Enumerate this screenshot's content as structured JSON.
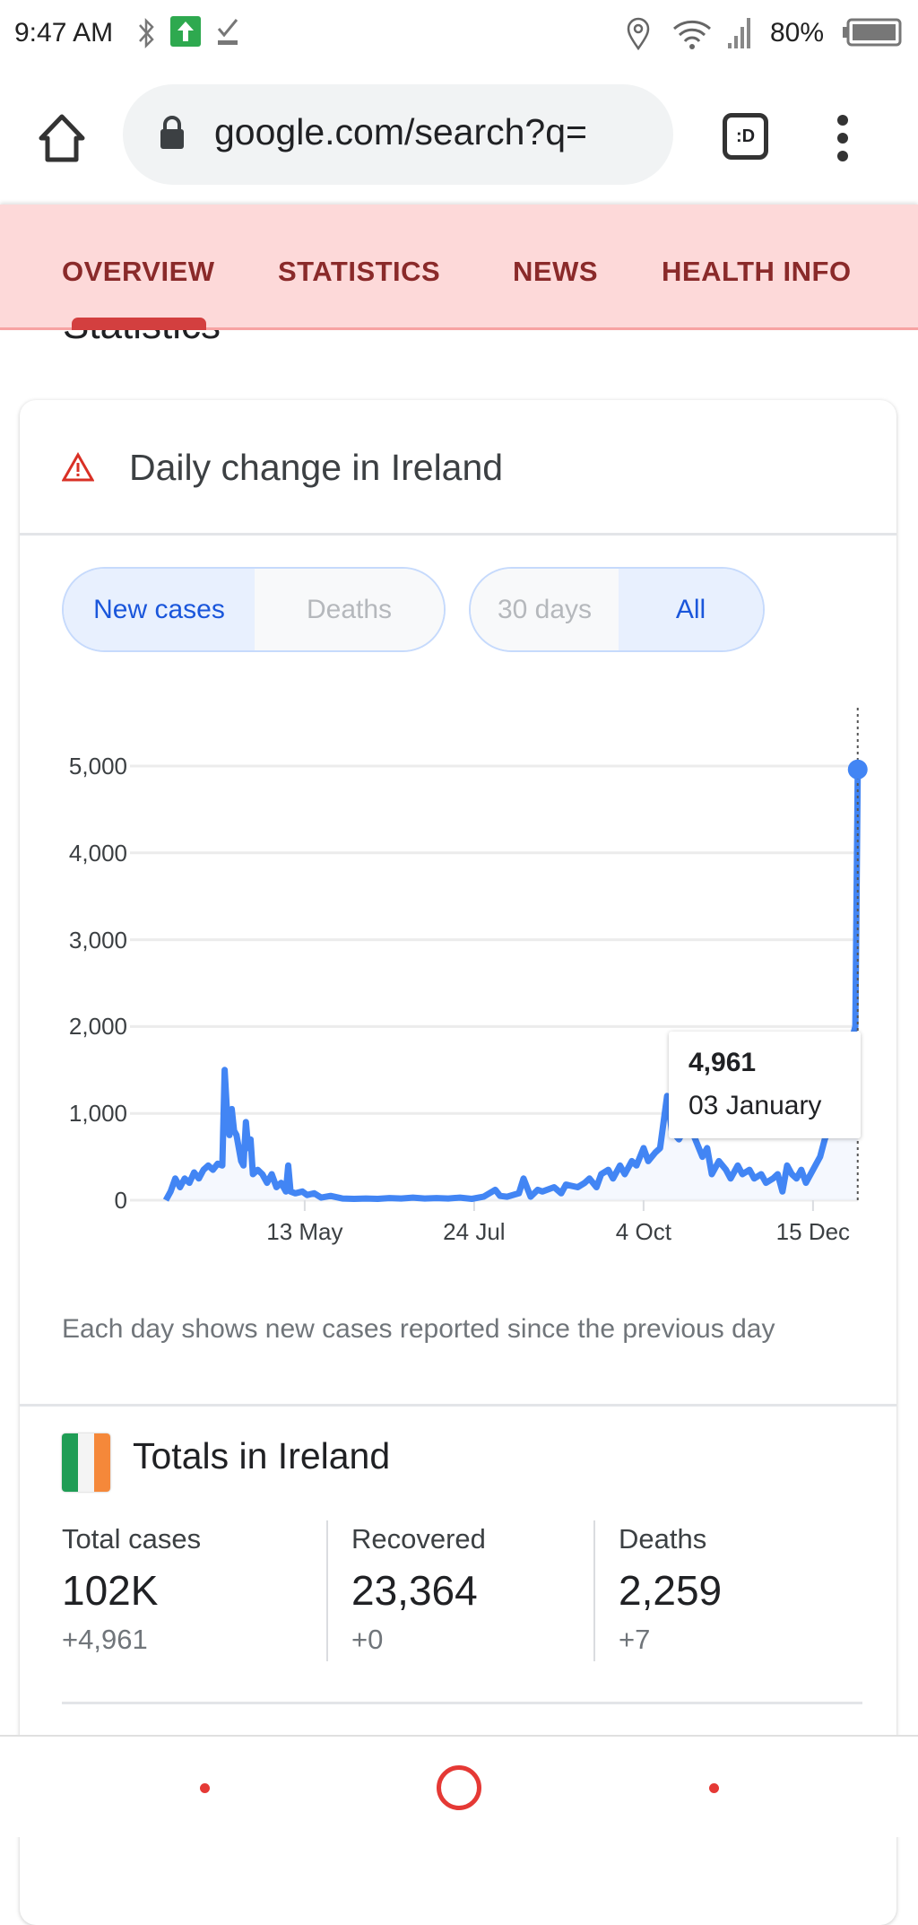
{
  "status_bar": {
    "time": "9:47 AM",
    "battery": "80%"
  },
  "browser": {
    "url": "google.com/search?q=",
    "tab_switcher_label": ":D"
  },
  "tabs": [
    {
      "label": "OVERVIEW",
      "active": true
    },
    {
      "label": "STATISTICS",
      "active": false
    },
    {
      "label": "NEWS",
      "active": false
    },
    {
      "label": "HEALTH INFO",
      "active": false
    }
  ],
  "section_title": "Statistics",
  "daily_card": {
    "title": "Daily change in Ireland",
    "metric_toggle": [
      {
        "label": "New cases",
        "selected": true
      },
      {
        "label": "Deaths",
        "selected": false
      }
    ],
    "range_toggle": [
      {
        "label": "30 days",
        "selected": false
      },
      {
        "label": "All",
        "selected": true
      }
    ],
    "tooltip": {
      "value": "4,961",
      "date": "03 January"
    },
    "caption": "Each day shows new cases reported since the previous day"
  },
  "chart_data": {
    "type": "line",
    "title": "Daily change in Ireland",
    "xlabel": "",
    "ylabel": "New cases",
    "x_unit": "days since start of series (day 59 = 13 May, day 294 = 03 January)",
    "ylim": [
      0,
      5000
    ],
    "yticks": [
      0,
      1000,
      2000,
      3000,
      4000,
      5000
    ],
    "ytick_labels": [
      "0",
      "1,000",
      "2,000",
      "3,000",
      "4,000",
      "5,000"
    ],
    "xticks": [
      59,
      131,
      203,
      275
    ],
    "xtick_labels": [
      "13 May",
      "24 Jul",
      "4 Oct",
      "15 Dec"
    ],
    "grid": true,
    "highlight": {
      "x": 294,
      "y": 4961
    },
    "x": [
      0,
      2,
      4,
      6,
      8,
      10,
      12,
      14,
      16,
      18,
      20,
      22,
      24,
      25,
      26,
      27,
      28,
      29,
      30,
      32,
      33,
      34,
      35,
      36,
      37,
      39,
      41,
      43,
      45,
      47,
      49,
      51,
      52,
      53,
      55,
      58,
      60,
      63,
      66,
      70,
      75,
      80,
      85,
      90,
      95,
      100,
      105,
      110,
      115,
      120,
      125,
      130,
      135,
      140,
      142,
      145,
      150,
      152,
      155,
      158,
      160,
      165,
      168,
      170,
      175,
      178,
      180,
      183,
      185,
      188,
      190,
      193,
      195,
      198,
      200,
      203,
      205,
      208,
      210,
      212,
      213,
      215,
      218,
      222,
      225,
      228,
      230,
      232,
      235,
      238,
      240,
      243,
      245,
      248,
      250,
      253,
      255,
      258,
      260,
      262,
      264,
      266,
      268,
      270,
      272,
      275,
      278,
      280,
      283,
      286,
      288,
      290,
      292,
      293,
      294
    ],
    "y": [
      0,
      100,
      250,
      150,
      250,
      200,
      320,
      250,
      350,
      400,
      350,
      420,
      400,
      1500,
      1000,
      750,
      1050,
      800,
      750,
      450,
      400,
      900,
      600,
      700,
      300,
      350,
      300,
      200,
      300,
      150,
      200,
      100,
      400,
      100,
      80,
      100,
      60,
      80,
      30,
      50,
      20,
      15,
      20,
      15,
      25,
      20,
      30,
      20,
      25,
      20,
      30,
      15,
      40,
      120,
      50,
      40,
      80,
      250,
      40,
      120,
      100,
      150,
      80,
      180,
      150,
      200,
      250,
      150,
      300,
      350,
      250,
      400,
      300,
      450,
      400,
      600,
      450,
      550,
      600,
      1000,
      1200,
      800,
      700,
      900,
      700,
      500,
      600,
      300,
      450,
      350,
      250,
      400,
      300,
      350,
      250,
      300,
      200,
      250,
      300,
      100,
      400,
      300,
      250,
      350,
      200,
      350,
      500,
      700,
      900,
      1300,
      1500,
      1800,
      1900,
      2000,
      4961
    ]
  },
  "totals_card": {
    "title": "Totals in Ireland",
    "stats": [
      {
        "label": "Total cases",
        "value": "102K",
        "delta": "+4,961"
      },
      {
        "label": "Recovered",
        "value": "23,364",
        "delta": "+0"
      },
      {
        "label": "Deaths",
        "value": "2,259",
        "delta": "+7"
      }
    ]
  },
  "colors": {
    "accent": "#4285f4",
    "tab_bg": "#fdd9d9",
    "tab_text": "#8a2a2a",
    "indicator": "#d33f3f"
  }
}
